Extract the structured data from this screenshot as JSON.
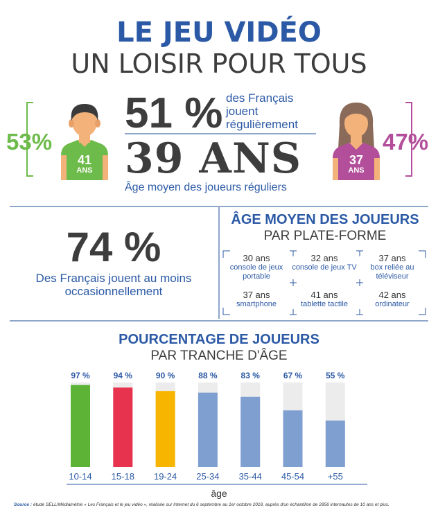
{
  "header": {
    "title": "LE JEU VIDÉO",
    "subtitle": "UN LOISIR POUR TOUS"
  },
  "men": {
    "percent": "53%",
    "age": "41",
    "age_unit": "ANS"
  },
  "women": {
    "percent": "47%",
    "age": "37",
    "age_unit": "ANS"
  },
  "stat_regular": {
    "value": "51 %",
    "text": "des Français jouent régulièrement"
  },
  "stat_age": {
    "value": "39 ANS",
    "text": "Âge moyen des joueurs réguliers"
  },
  "stat_occasional": {
    "value": "74 %",
    "text": "Des Français jouent au moins occasionnellement"
  },
  "platforms": {
    "title": "ÂGE MOYEN DES JOUEURS",
    "subtitle": "PAR PLATE-FORME",
    "items": [
      {
        "age": "30 ans",
        "label": "console de jeux portable"
      },
      {
        "age": "32 ans",
        "label": "console de jeux TV"
      },
      {
        "age": "37 ans",
        "label": "box reliée au téléviseur"
      },
      {
        "age": "37 ans",
        "label": "smartphone"
      },
      {
        "age": "41 ans",
        "label": "tablette tactile"
      },
      {
        "age": "42 ans",
        "label": "ordinateur"
      }
    ]
  },
  "chart_data": {
    "type": "bar",
    "title": "POURCENTAGE DE JOUEURS",
    "subtitle": "PAR TRANCHE D'ÂGE",
    "xlabel": "âge",
    "ylabel": "",
    "ylim": [
      0,
      100
    ],
    "categories": [
      "10-14",
      "15-18",
      "19-24",
      "25-34",
      "35-44",
      "45-54",
      "+55"
    ],
    "values": [
      97,
      94,
      90,
      88,
      83,
      67,
      55
    ],
    "value_labels": [
      "97 %",
      "94 %",
      "90 %",
      "88 %",
      "83 %",
      "67 %",
      "55 %"
    ],
    "colors": [
      "#5cb335",
      "#e8334f",
      "#f7b500",
      "#7f9fd1",
      "#7f9fd1",
      "#7f9fd1",
      "#7f9fd1"
    ],
    "track_color": "#ececec",
    "grid": false
  },
  "source": {
    "label": "Source :",
    "text": "étude SELL/Médiamétrie « Les Français et le jeu vidéo », réalisée sur Internet du 6 septembre au 1er octobre 2018, auprès d'un échantillon de 2856 internautes de 10 ans et plus."
  }
}
